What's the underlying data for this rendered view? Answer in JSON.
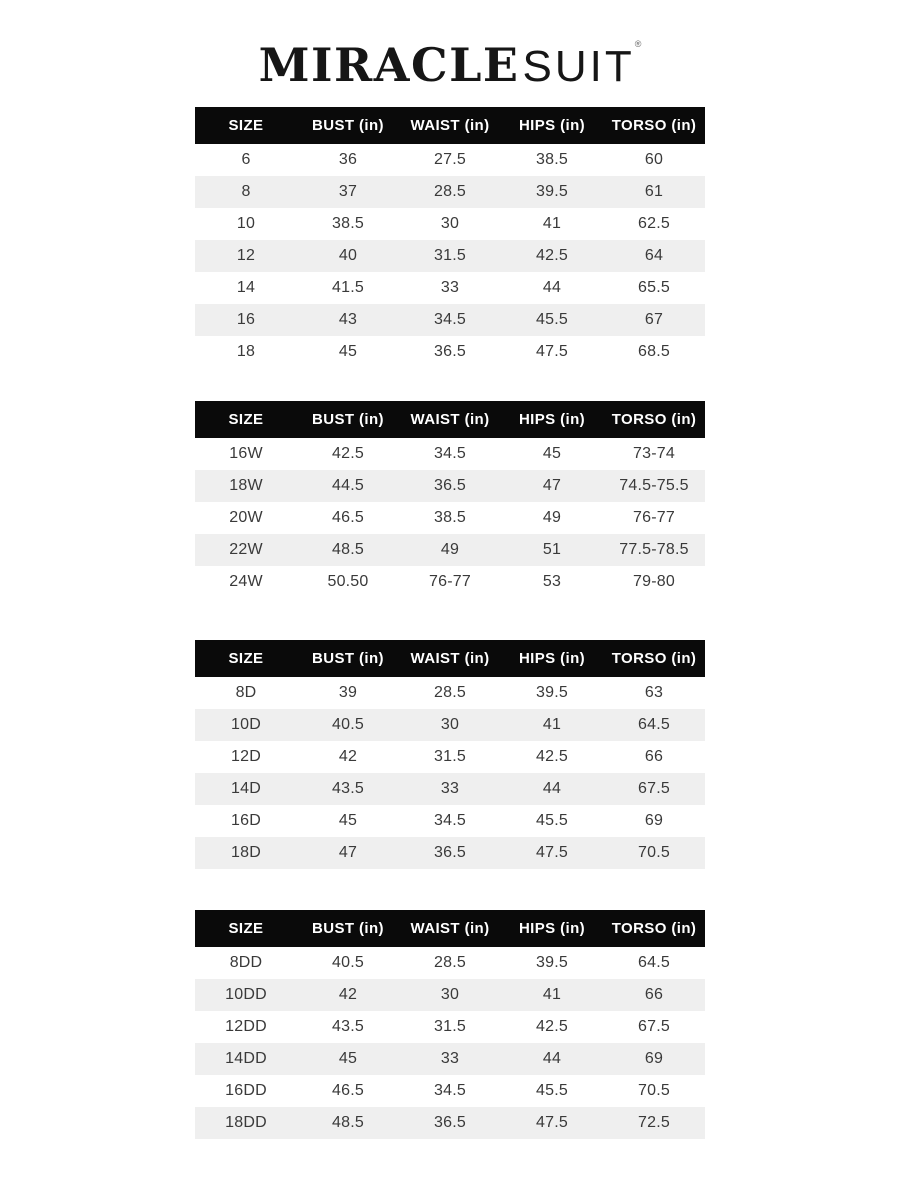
{
  "logo": {
    "text_serif": "MIRACLE",
    "text_sans": "SUIT",
    "registered_mark": "®"
  },
  "colors": {
    "page_bg": "#ffffff",
    "header_bg": "#0a0a0a",
    "header_text": "#ffffff",
    "row_bg": "#ffffff",
    "row_alt_bg": "#efefef",
    "cell_text": "#3a3a3a",
    "logo_text": "#161616"
  },
  "columns": [
    "SIZE",
    "BUST (in)",
    "WAIST (in)",
    "HIPS (in)",
    "TORSO (in)"
  ],
  "tables": [
    {
      "id": "misses-sizes",
      "rows": [
        [
          "6",
          "36",
          "27.5",
          "38.5",
          "60"
        ],
        [
          "8",
          "37",
          "28.5",
          "39.5",
          "61"
        ],
        [
          "10",
          "38.5",
          "30",
          "41",
          "62.5"
        ],
        [
          "12",
          "40",
          "31.5",
          "42.5",
          "64"
        ],
        [
          "14",
          "41.5",
          "33",
          "44",
          "65.5"
        ],
        [
          "16",
          "43",
          "34.5",
          "45.5",
          "67"
        ],
        [
          "18",
          "45",
          "36.5",
          "47.5",
          "68.5"
        ]
      ]
    },
    {
      "id": "womens-sizes",
      "rows": [
        [
          "16W",
          "42.5",
          "34.5",
          "45",
          "73-74"
        ],
        [
          "18W",
          "44.5",
          "36.5",
          "47",
          "74.5-75.5"
        ],
        [
          "20W",
          "46.5",
          "38.5",
          "49",
          "76-77"
        ],
        [
          "22W",
          "48.5",
          "49",
          "51",
          "77.5-78.5"
        ],
        [
          "24W",
          "50.50",
          "76-77",
          "53",
          "79-80"
        ]
      ]
    },
    {
      "id": "d-cup-sizes",
      "rows": [
        [
          "8D",
          "39",
          "28.5",
          "39.5",
          "63"
        ],
        [
          "10D",
          "40.5",
          "30",
          "41",
          "64.5"
        ],
        [
          "12D",
          "42",
          "31.5",
          "42.5",
          "66"
        ],
        [
          "14D",
          "43.5",
          "33",
          "44",
          "67.5"
        ],
        [
          "16D",
          "45",
          "34.5",
          "45.5",
          "69"
        ],
        [
          "18D",
          "47",
          "36.5",
          "47.5",
          "70.5"
        ]
      ]
    },
    {
      "id": "dd-cup-sizes",
      "rows": [
        [
          "8DD",
          "40.5",
          "28.5",
          "39.5",
          "64.5"
        ],
        [
          "10DD",
          "42",
          "30",
          "41",
          "66"
        ],
        [
          "12DD",
          "43.5",
          "31.5",
          "42.5",
          "67.5"
        ],
        [
          "14DD",
          "45",
          "33",
          "44",
          "69"
        ],
        [
          "16DD",
          "46.5",
          "34.5",
          "45.5",
          "70.5"
        ],
        [
          "18DD",
          "48.5",
          "36.5",
          "47.5",
          "72.5"
        ]
      ]
    }
  ]
}
